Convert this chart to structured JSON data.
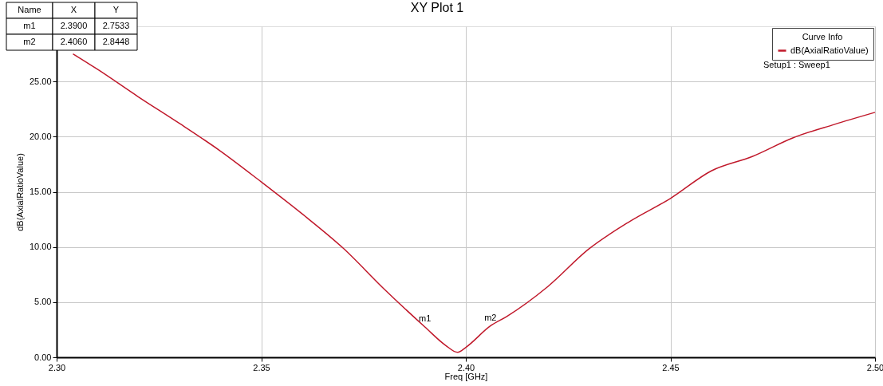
{
  "chart_data": {
    "type": "line",
    "title": "XY Plot 1",
    "xlabel": "Freq [GHz]",
    "ylabel": "dB(AxialRatioValue)",
    "legend_title": "Curve Info",
    "x": [
      2.304,
      2.31,
      2.32,
      2.33,
      2.34,
      2.35,
      2.36,
      2.37,
      2.38,
      2.39,
      2.395,
      2.398,
      2.4,
      2.406,
      2.41,
      2.42,
      2.43,
      2.44,
      2.45,
      2.46,
      2.47,
      2.48,
      2.49,
      2.5
    ],
    "series": [
      {
        "name": "dB(AxialRatioValue)",
        "color": "#c0182a",
        "values": [
          27.5,
          26.1,
          23.6,
          21.2,
          18.7,
          15.9,
          13.0,
          9.9,
          6.2,
          2.75,
          1.1,
          0.45,
          0.9,
          2.84,
          3.7,
          6.4,
          9.8,
          12.3,
          14.4,
          16.9,
          18.2,
          19.9,
          21.1,
          22.2
        ]
      }
    ],
    "xlim": [
      2.3,
      2.5
    ],
    "xticks": [
      {
        "value": 2.3,
        "label": "2.30"
      },
      {
        "value": 2.35,
        "label": "2.35"
      },
      {
        "value": 2.4,
        "label": "2.40"
      },
      {
        "value": 2.45,
        "label": "2.45"
      },
      {
        "value": 2.5,
        "label": "2.50"
      }
    ],
    "ylim": [
      0,
      30
    ],
    "yticks": [
      {
        "value": 0,
        "label": "0.00"
      },
      {
        "value": 5,
        "label": "5.00"
      },
      {
        "value": 10,
        "label": "10.00"
      },
      {
        "value": 15,
        "label": "15.00"
      },
      {
        "value": 20,
        "label": "20.00"
      },
      {
        "value": 25,
        "label": "25.00"
      }
    ],
    "grid": true,
    "legend": "top right",
    "marker": "none",
    "line_style": "solid",
    "annotations": [
      {
        "text": "m1",
        "x": 2.39,
        "y": 2.7533
      },
      {
        "text": "m2",
        "x": 2.406,
        "y": 2.8448
      },
      "Name",
      "X",
      "Y",
      "m1",
      "2.3900",
      "2.7533",
      "m2",
      "2.4060",
      "2.8448",
      "Setup1 : Sweep1"
    ]
  }
}
